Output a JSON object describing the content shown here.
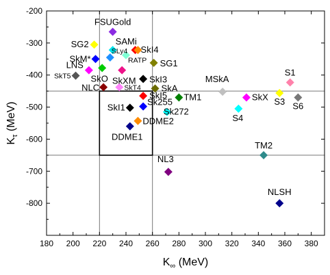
{
  "chart_data": {
    "type": "scatter",
    "title": "",
    "xlabel": "K",
    "xlabel_sub": "∞",
    "xlabel_unit": " (MeV)",
    "ylabel": "K",
    "ylabel_sub": "τ",
    "ylabel_unit": " (MeV)",
    "xlim": [
      180,
      390
    ],
    "ylim": [
      -900,
      -200
    ],
    "xticks": [
      "180",
      "200",
      "220",
      "240",
      "260",
      "280",
      "300",
      "320",
      "340",
      "360",
      "380"
    ],
    "yticks": [
      "-200",
      "-300",
      "-400",
      "-500",
      "-600",
      "-700",
      "-800"
    ],
    "grid": false,
    "reference_lines": {
      "x": [
        220,
        260
      ],
      "y": [
        -450,
        -650
      ]
    },
    "constraint_box": {
      "x": [
        220,
        260
      ],
      "y": [
        -650,
        -450
      ]
    },
    "points": [
      {
        "x": 230,
        "y": -265,
        "color": "#8b2be2",
        "label": "FSUGold",
        "label_dx": 0,
        "label_dy": -10,
        "anchor": "middle",
        "small": false
      },
      {
        "x": 216,
        "y": -305,
        "color": "#ffff00",
        "label": "SG2",
        "label_dx": -8,
        "label_dy": 4,
        "anchor": "end",
        "small": false
      },
      {
        "x": 230,
        "y": -322,
        "color": "#00e5ee",
        "label": "SAMi",
        "label_dx": 4,
        "label_dy": -8,
        "anchor": "start",
        "small": false
      },
      {
        "x": 247,
        "y": -322,
        "color": "#ff0000",
        "label": "SkI4",
        "label_dx": 8,
        "label_dy": 4,
        "anchor": "start",
        "small": false
      },
      {
        "x": 249,
        "y": -322,
        "color": "#ff8c00",
        "label": "",
        "label_dx": 0,
        "label_dy": 0,
        "anchor": "start",
        "small": false
      },
      {
        "x": 217,
        "y": -350,
        "color": "#0000ff",
        "label": "SkM*",
        "label_dx": -7,
        "label_dy": 4,
        "anchor": "end",
        "small": false
      },
      {
        "x": 228,
        "y": -345,
        "color": "#1e90ff",
        "label": "SLy4",
        "label_dx": 2,
        "label_dy": -6,
        "anchor": "start",
        "small": true
      },
      {
        "x": 240,
        "y": -338,
        "color": "#7fffd4",
        "label": "RATP",
        "label_dx": 3,
        "label_dy": 11,
        "anchor": "start",
        "small": true
      },
      {
        "x": 261,
        "y": -362,
        "color": "#808000",
        "label": "SG1",
        "label_dx": 9,
        "label_dy": 5,
        "anchor": "start",
        "small": false
      },
      {
        "x": 212,
        "y": -385,
        "color": "#ff00ff",
        "label": "LNS",
        "label_dx": -8,
        "label_dy": -3,
        "anchor": "end",
        "small": false
      },
      {
        "x": 222,
        "y": -378,
        "color": "#00cc00",
        "label": "SkO",
        "label_dx": -4,
        "label_dy": 20,
        "anchor": "middle",
        "small": false
      },
      {
        "x": 237,
        "y": -385,
        "color": "#ee1289",
        "label": "SkXM",
        "label_dx": 3,
        "label_dy": 20,
        "anchor": "middle",
        "small": false
      },
      {
        "x": 202,
        "y": -402,
        "color": "#555555",
        "label": "SkT5",
        "label_dx": -7,
        "label_dy": 4,
        "anchor": "end",
        "small": true
      },
      {
        "x": 253,
        "y": -412,
        "color": "#000000",
        "label": "SkI3",
        "label_dx": 9,
        "label_dy": 5,
        "anchor": "start",
        "small": false
      },
      {
        "x": 223,
        "y": -438,
        "color": "#8b0000",
        "label": "NLC",
        "label_dx": -6,
        "label_dy": 5,
        "anchor": "end",
        "small": false
      },
      {
        "x": 235,
        "y": -438,
        "color": "#ff83fa",
        "label": "SkT4",
        "label_dx": 7,
        "label_dy": 4,
        "anchor": "start",
        "small": true
      },
      {
        "x": 262,
        "y": -442,
        "color": "#6b6b00",
        "label": "SkA",
        "label_dx": 9,
        "label_dy": 4,
        "anchor": "start",
        "small": false
      },
      {
        "x": 313,
        "y": -452,
        "color": "#c0c0c0",
        "label": "MSkA",
        "label_dx": -8,
        "label_dy": -14,
        "anchor": "middle",
        "small": false
      },
      {
        "x": 364,
        "y": -423,
        "color": "#ff82ab",
        "label": "S1",
        "label_dx": 0,
        "label_dy": -10,
        "anchor": "middle",
        "small": false
      },
      {
        "x": 356,
        "y": -456,
        "color": "#ffff00",
        "label": "S3",
        "label_dx": 0,
        "label_dy": 17,
        "anchor": "middle",
        "small": false
      },
      {
        "x": 370,
        "y": -470,
        "color": "#777777",
        "label": "S6",
        "label_dx": 0,
        "label_dy": 17,
        "anchor": "middle",
        "small": false
      },
      {
        "x": 253,
        "y": -465,
        "color": "#ff0000",
        "label": "SkI5",
        "label_dx": 9,
        "label_dy": 4,
        "anchor": "start",
        "small": false
      },
      {
        "x": 280,
        "y": -470,
        "color": "#008000",
        "label": "TM1",
        "label_dx": 7,
        "label_dy": 4,
        "anchor": "start",
        "small": false
      },
      {
        "x": 331,
        "y": -470,
        "color": "#ff00ff",
        "label": "SkX",
        "label_dx": 8,
        "label_dy": 4,
        "anchor": "start",
        "small": false
      },
      {
        "x": 253,
        "y": -498,
        "color": "#0000ff",
        "label": "Sk255",
        "label_dx": 6,
        "label_dy": -2,
        "anchor": "start",
        "small": false
      },
      {
        "x": 243,
        "y": -502,
        "color": "#000000",
        "label": "SkI1",
        "label_dx": -7,
        "label_dy": 4,
        "anchor": "end",
        "small": false
      },
      {
        "x": 325,
        "y": -505,
        "color": "#00ffff",
        "label": "S4",
        "label_dx": -1,
        "label_dy": 18,
        "anchor": "middle",
        "small": false
      },
      {
        "x": 271,
        "y": -515,
        "color": "#00ffff",
        "label": "Sk272",
        "label_dx": -5,
        "label_dy": 4,
        "anchor": "start",
        "small": false
      },
      {
        "x": 249,
        "y": -543,
        "color": "#ff8c00",
        "label": "DDME2",
        "label_dx": 7,
        "label_dy": 5,
        "anchor": "start",
        "small": false
      },
      {
        "x": 243,
        "y": -560,
        "color": "#00008b",
        "label": "DDME1",
        "label_dx": -4,
        "label_dy": 20,
        "anchor": "middle",
        "small": false
      },
      {
        "x": 344,
        "y": -650,
        "color": "#2e8b8b",
        "label": "TM2",
        "label_dx": 0,
        "label_dy": -10,
        "anchor": "middle",
        "small": false
      },
      {
        "x": 272,
        "y": -702,
        "color": "#800080",
        "label": "NL3",
        "label_dx": -4,
        "label_dy": -14,
        "anchor": "middle",
        "small": false
      },
      {
        "x": 356,
        "y": -800,
        "color": "#00008b",
        "label": "NLSH",
        "label_dx": 0,
        "label_dy": -12,
        "anchor": "middle",
        "small": false
      }
    ]
  }
}
